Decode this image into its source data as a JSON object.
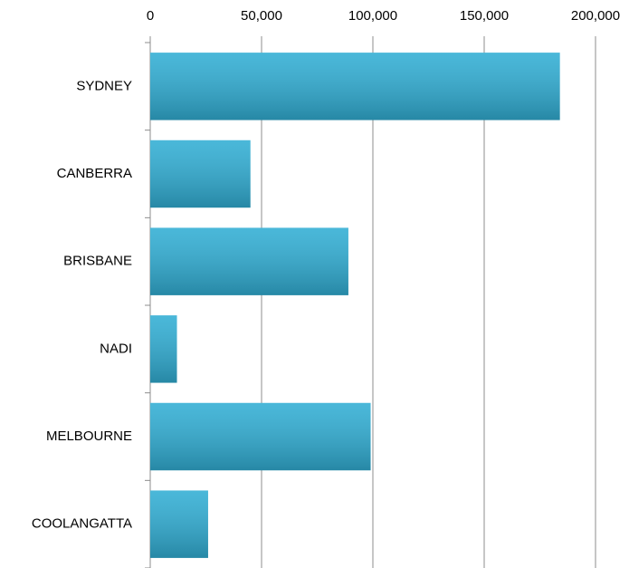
{
  "chart_data": {
    "type": "bar",
    "orientation": "horizontal",
    "categories": [
      "SYDNEY",
      "CANBERRA",
      "BRISBANE",
      "NADI",
      "MELBOURNE",
      "COOLANGATTA"
    ],
    "values": [
      184000,
      45000,
      89000,
      12000,
      99000,
      26000
    ],
    "color": "#31aed4",
    "xlim": [
      0,
      200000
    ],
    "xticks": [
      0,
      {
        "value": 50000,
        "label": "50,000"
      },
      {
        "value": 100000,
        "label": "100,000"
      },
      {
        "value": 150000,
        "label": "150,000"
      },
      {
        "value": 200000,
        "label": "200,000"
      }
    ],
    "grid": true
  }
}
